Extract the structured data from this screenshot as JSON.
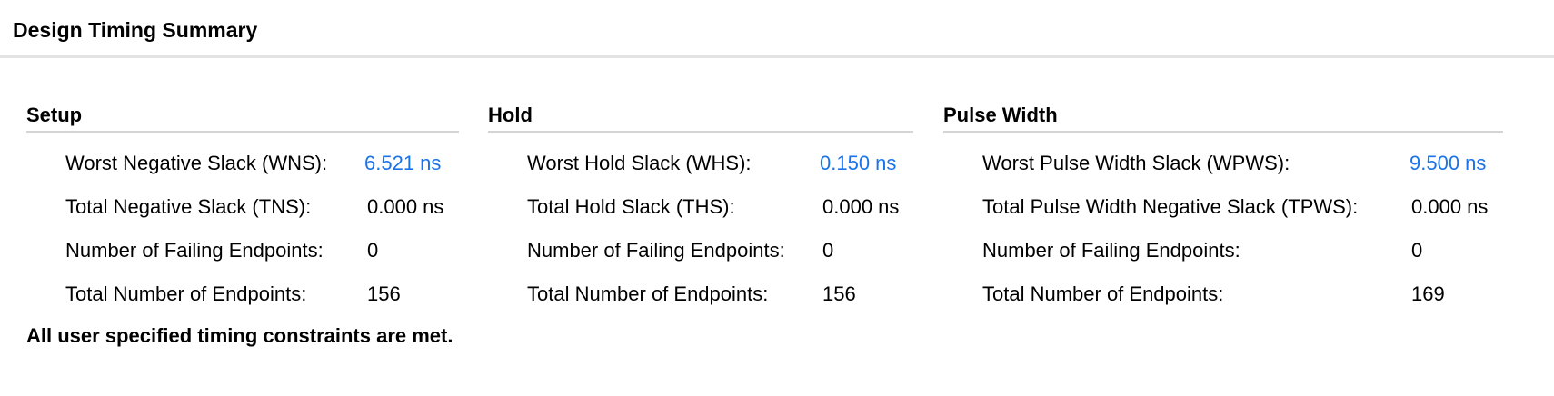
{
  "header": {
    "title": "Design Timing Summary"
  },
  "setup": {
    "title": "Setup",
    "rows": [
      {
        "label": "Worst Negative Slack (WNS):",
        "value": "6.521 ns"
      },
      {
        "label": "Total Negative Slack (TNS):",
        "value": "0.000 ns"
      },
      {
        "label": "Number of Failing Endpoints:",
        "value": "0"
      },
      {
        "label": "Total Number of Endpoints:",
        "value": "156"
      }
    ]
  },
  "hold": {
    "title": "Hold",
    "rows": [
      {
        "label": "Worst Hold Slack (WHS):",
        "value": "0.150 ns"
      },
      {
        "label": "Total Hold Slack (THS):",
        "value": "0.000 ns"
      },
      {
        "label": "Number of Failing Endpoints:",
        "value": "0"
      },
      {
        "label": "Total Number of Endpoints:",
        "value": "156"
      }
    ]
  },
  "pulse_width": {
    "title": "Pulse Width",
    "rows": [
      {
        "label": "Worst Pulse Width Slack (WPWS):",
        "value": "9.500 ns"
      },
      {
        "label": "Total Pulse Width Negative Slack (TPWS):",
        "value": "0.000 ns"
      },
      {
        "label": "Number of Failing Endpoints:",
        "value": "0"
      },
      {
        "label": "Total Number of Endpoints:",
        "value": "169"
      }
    ]
  },
  "footer": {
    "message": "All user specified timing constraints are met."
  },
  "colors": {
    "link": "#1a73e8",
    "divider": "#d4d4d4"
  }
}
